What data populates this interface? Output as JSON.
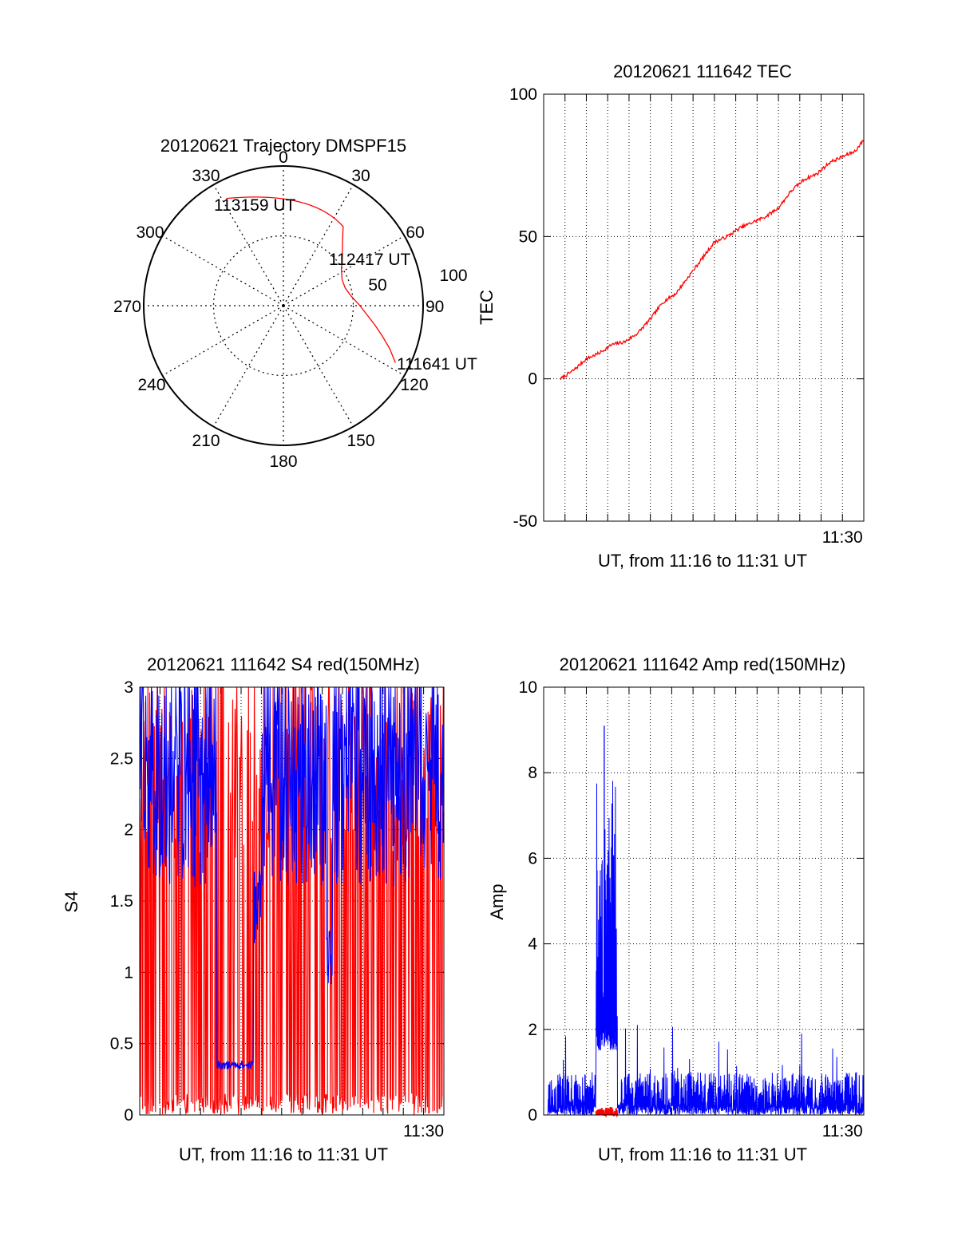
{
  "chart_data": [
    {
      "type": "polar",
      "title": "20120621 Trajectory DMSPF15",
      "angle_ticks": [
        "0",
        "30",
        "60",
        "90",
        "120",
        "150",
        "180",
        "210",
        "240",
        "270",
        "300",
        "330"
      ],
      "radius_ticks": [
        "50",
        "100"
      ],
      "radius_range": [
        0,
        100
      ],
      "grid": true,
      "series": [
        {
          "color": "#ff0000",
          "points": [
            {
              "az": 117,
              "r": 90
            },
            {
              "az": 112,
              "r": 82
            },
            {
              "az": 107,
              "r": 74
            },
            {
              "az": 102,
              "r": 67
            },
            {
              "az": 96,
              "r": 60
            },
            {
              "az": 89,
              "r": 54
            },
            {
              "az": 82,
              "r": 49
            },
            {
              "az": 74,
              "r": 46
            },
            {
              "az": 66,
              "r": 46
            },
            {
              "az": 58,
              "r": 49
            },
            {
              "az": 50,
              "r": 55
            },
            {
              "az": 43,
              "r": 62
            },
            {
              "az": 37,
              "r": 71
            },
            {
              "az": 332,
              "r": 87
            }
          ]
        }
      ],
      "annotations": [
        {
          "text": "113159 UT",
          "az": 332,
          "r": 87
        },
        {
          "text": "112417 UT",
          "az": 58,
          "r": 49
        },
        {
          "text": "111641 UT",
          "az": 117,
          "r": 90
        }
      ]
    },
    {
      "type": "line",
      "title": "20120621 111642 TEC",
      "xlabel": "UT, from 11:16 to 11:31 UT",
      "ylabel": "TEC",
      "xlim": [
        11.2667,
        11.5167
      ],
      "ylim": [
        -50,
        100
      ],
      "yticks": [
        "-50",
        "0",
        "50",
        "100"
      ],
      "xtick_labels": [
        {
          "label": "11:30",
          "x": 11.5
        }
      ],
      "grid": true,
      "series": [
        {
          "color": "#ff0000",
          "x": [
            11.28,
            11.29,
            11.3,
            11.31,
            11.32,
            11.33,
            11.34,
            11.35,
            11.36,
            11.37,
            11.38,
            11.39,
            11.4,
            11.41,
            11.42,
            11.43,
            11.44,
            11.45,
            11.46,
            11.47,
            11.48,
            11.49,
            11.5,
            11.51,
            11.5167
          ],
          "y": [
            0,
            3,
            7,
            9,
            12,
            13,
            16,
            21,
            27,
            30,
            36,
            42,
            48,
            50,
            53,
            55,
            57,
            60,
            66,
            70,
            72,
            76,
            78,
            80,
            84
          ]
        }
      ]
    },
    {
      "type": "line",
      "title": "20120621 111642 S4 red(150MHz)",
      "xlabel": "UT, from 11:16 to 11:31 UT",
      "ylabel": "S4",
      "xlim": [
        11.2667,
        11.5167
      ],
      "ylim": [
        0,
        3
      ],
      "yticks": [
        "0",
        "0.5",
        "1",
        "1.5",
        "2",
        "2.5",
        "3"
      ],
      "xtick_labels": [
        {
          "label": "11:30",
          "x": 11.5
        }
      ],
      "grid": true,
      "series": [
        {
          "color": "#ff0000",
          "x_range": [
            11.2667,
            11.5167
          ],
          "y_range": [
            0,
            3
          ]
        },
        {
          "color": "#0000ff",
          "x_range": [
            11.2667,
            11.5167
          ],
          "y_range": [
            0.3,
            3
          ]
        }
      ]
    },
    {
      "type": "line",
      "title": "20120621 111642 Amp red(150MHz)",
      "xlabel": "UT, from 11:16 to 11:31 UT",
      "ylabel": "Amp",
      "xlim": [
        11.2667,
        11.5167
      ],
      "ylim": [
        0,
        10
      ],
      "yticks": [
        "0",
        "2",
        "4",
        "6",
        "8",
        "10"
      ],
      "xtick_labels": [
        {
          "label": "11:30",
          "x": 11.5
        }
      ],
      "grid": true,
      "series": [
        {
          "color": "#ff0000",
          "x_range": [
            11.3076,
            11.3244
          ],
          "y_range": [
            0,
            0.2
          ]
        },
        {
          "color": "#0000ff",
          "x_range": [
            11.2667,
            11.5167
          ],
          "y_range": [
            0,
            9.1
          ],
          "peak": 9.1
        }
      ]
    }
  ]
}
